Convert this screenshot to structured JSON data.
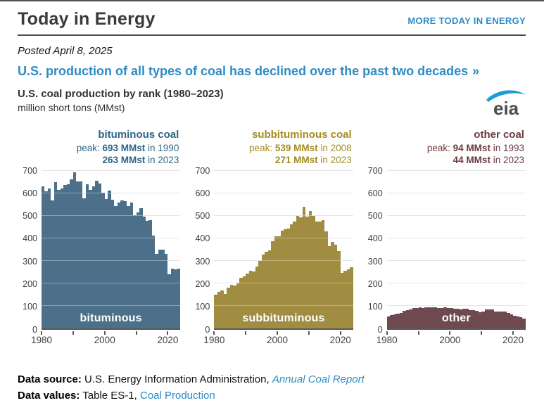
{
  "page": {
    "brand": "Today in Energy",
    "more_link": "MORE TODAY IN ENERGY",
    "posted": "Posted April 8, 2025",
    "headline": "U.S. production of all types of coal has declined over the past two decades",
    "headline_arrow": "»"
  },
  "figure": {
    "title": "U.S. coal production by rank (1980–2023)",
    "subtitle": "million short tons (MMst)",
    "logo_text": "eia"
  },
  "colors": {
    "accent_blue": "#2e8bc5",
    "logo_swoosh_blue": "#1b9bd7",
    "logo_text_gray": "#4d4d4f",
    "bituminous_bar": "#4c7089",
    "bituminous_text": "#2c6587",
    "subbituminous_bar": "#a08d41",
    "subbituminous_text": "#a38b1f",
    "other_bar": "#6e4a50",
    "other_text": "#6b3a40"
  },
  "chart_data": [
    {
      "type": "bar",
      "title": "bituminous coal",
      "inner_label": "bituminous",
      "peak_prefix": "peak:",
      "peak_value": "693 MMst",
      "peak_year": "in 1990",
      "latest_value": "263 MMst",
      "latest_year": "in 2023",
      "color": "#4c7089",
      "title_color": "#2c6587",
      "x_start": 1980,
      "x_end": 2023,
      "ylim": [
        0,
        700
      ],
      "yticks": [
        0,
        100,
        200,
        300,
        400,
        500,
        600,
        700
      ],
      "xticks": [
        1980,
        1990,
        2000,
        2010,
        2020
      ],
      "xtick_labels": [
        1980,
        2000,
        2020
      ],
      "ylabel": "MMst",
      "values": [
        629,
        608,
        620,
        568,
        650,
        614,
        620,
        637,
        638,
        660,
        693,
        651,
        652,
        577,
        640,
        614,
        631,
        654,
        641,
        602,
        574,
        611,
        572,
        541,
        557,
        567,
        563,
        543,
        557,
        503,
        514,
        532,
        496,
        476,
        481,
        410,
        329,
        350,
        349,
        331,
        239,
        265,
        262,
        263
      ]
    },
    {
      "type": "bar",
      "title": "subbituminous coal",
      "inner_label": "subbituminous",
      "peak_prefix": "peak:",
      "peak_value": "539 MMst",
      "peak_year": "in 2008",
      "latest_value": "271 MMst",
      "latest_year": "in 2023",
      "color": "#a08d41",
      "title_color": "#a38b1f",
      "x_start": 1980,
      "x_end": 2023,
      "ylim": [
        0,
        700
      ],
      "yticks": [
        0,
        100,
        200,
        300,
        400,
        500,
        600,
        700
      ],
      "xticks": [
        1980,
        1990,
        2000,
        2010,
        2020
      ],
      "xtick_labels": [
        1980,
        2000,
        2020
      ],
      "ylabel": "MMst",
      "values": [
        148,
        160,
        167,
        151,
        179,
        193,
        190,
        200,
        224,
        231,
        244,
        255,
        252,
        275,
        300,
        328,
        340,
        345,
        386,
        408,
        409,
        434,
        438,
        443,
        461,
        475,
        498,
        493,
        539,
        497,
        521,
        500,
        475,
        474,
        479,
        431,
        364,
        384,
        371,
        344,
        245,
        254,
        260,
        271
      ]
    },
    {
      "type": "bar",
      "title": "other coal",
      "inner_label": "other",
      "peak_prefix": "peak:",
      "peak_value": "94 MMst",
      "peak_year": "in 1993",
      "latest_value": "44 MMst",
      "latest_year": "in 2023",
      "color": "#6e4a50",
      "title_color": "#6b3a40",
      "x_start": 1980,
      "x_end": 2023,
      "ylim": [
        0,
        700
      ],
      "yticks": [
        0,
        100,
        200,
        300,
        400,
        500,
        600,
        700
      ],
      "xticks": [
        1980,
        1990,
        2000,
        2010,
        2020
      ],
      "xtick_labels": [
        1980,
        2000,
        2020
      ],
      "ylabel": "MMst",
      "values": [
        53,
        57,
        61,
        65,
        68,
        76,
        81,
        82,
        89,
        90,
        92,
        90,
        93,
        94,
        93,
        91,
        89,
        90,
        91,
        90,
        90,
        87,
        86,
        84,
        85,
        87,
        79,
        79,
        78,
        71,
        74,
        83,
        84,
        82,
        74,
        73,
        73,
        74,
        69,
        62,
        55,
        52,
        49,
        44
      ]
    }
  ],
  "footer": {
    "source_label": "Data source:",
    "source_text": " U.S. Energy Information Administration, ",
    "source_link": "Annual Coal Report",
    "values_label": "Data values:",
    "values_text": " Table ES-1, ",
    "values_link": "Coal Production"
  }
}
